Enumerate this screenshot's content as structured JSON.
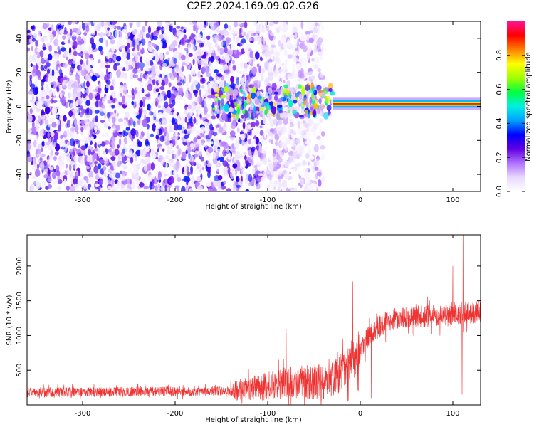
{
  "page": {
    "title": "C2E2.2024.169.09.02.G26"
  },
  "chart_data": [
    {
      "type": "heatmap",
      "title": "C2E2.2024.169.09.02.G26",
      "xlabel": "Height of straight line (km)",
      "ylabel": "Frequency (Hz)",
      "xlim": [
        -360,
        130
      ],
      "ylim": [
        -50,
        50
      ],
      "xticks": [
        -300,
        -200,
        -100,
        0,
        100
      ],
      "yticks": [
        40,
        20,
        0,
        -20,
        -40
      ],
      "grid": false,
      "colorbar": {
        "label": "Normalized spectral amplitude",
        "range": [
          0,
          1
        ],
        "ticks": [
          0.0,
          0.2,
          0.4,
          0.6,
          0.8
        ],
        "colormap": [
          "#ffffff",
          "#e8d8ff",
          "#b070ff",
          "#6000e0",
          "#0000ff",
          "#00a0ff",
          "#00f0e0",
          "#00ff40",
          "#a0ff00",
          "#ffff00",
          "#ff8000",
          "#ff0000",
          "#ff1493"
        ]
      },
      "regions": [
        {
          "name": "noise",
          "x": [
            -360,
            -105
          ],
          "y": [
            -50,
            50
          ],
          "amplitude": 0.15
        },
        {
          "name": "noise-fading",
          "x": [
            -105,
            -40
          ],
          "y": [
            -50,
            50
          ],
          "amplitude": 0.07
        },
        {
          "name": "signal-onset",
          "x": [
            -160,
            -30
          ],
          "y": [
            -6,
            12
          ],
          "amplitude": 0.35
        },
        {
          "name": "carrier",
          "x": [
            -30,
            130
          ],
          "y_center": 1.5,
          "y_halfwidth": 2,
          "amplitude": 0.9
        }
      ]
    },
    {
      "type": "line",
      "xlabel": "Height of straight line (km)",
      "ylabel": "SNR (10 * v/v)",
      "xlim": [
        -360,
        130
      ],
      "ylim": [
        0,
        2450
      ],
      "xticks": [
        -300,
        -200,
        -100,
        0,
        100
      ],
      "yticks": [
        500,
        1000,
        1500,
        2000
      ],
      "grid": false,
      "color": "#ee3333",
      "profile": {
        "x": [
          -360,
          -140,
          -120,
          -100,
          -80,
          -60,
          -40,
          -20,
          -10,
          0,
          10,
          20,
          30,
          40,
          60,
          80,
          100,
          110,
          120,
          130
        ],
        "y": [
          180,
          200,
          230,
          280,
          330,
          330,
          340,
          480,
          650,
          800,
          1000,
          1120,
          1200,
          1250,
          1270,
          1280,
          1290,
          1320,
          1330,
          1340
        ]
      },
      "spikes": [
        {
          "x": 111,
          "y": 2480
        },
        {
          "x": 110,
          "y": 150
        },
        {
          "x": 100,
          "y": 2000
        },
        {
          "x": 12,
          "y": 100
        },
        {
          "x": -8,
          "y": 1780
        },
        {
          "x": -80,
          "y": 1100
        }
      ]
    }
  ]
}
